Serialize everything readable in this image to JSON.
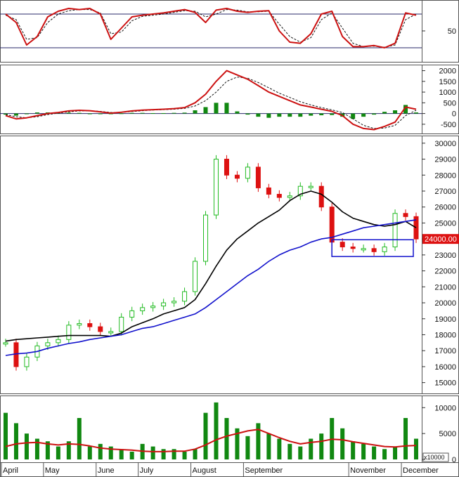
{
  "chart_data": [
    {
      "panel": "stochastic",
      "type": "line",
      "x": [
        "Apr",
        "Apr",
        "Apr",
        "Apr",
        "May",
        "May",
        "May",
        "May",
        "May",
        "Jun",
        "Jun",
        "Jun",
        "Jun",
        "Jul",
        "Jul",
        "Jul",
        "Jul",
        "Jul",
        "Aug",
        "Aug",
        "Aug",
        "Aug",
        "Aug",
        "Sep",
        "Sep",
        "Sep",
        "Sep",
        "Sep",
        "Oct",
        "Oct",
        "Oct",
        "Oct",
        "Oct",
        "Nov",
        "Nov",
        "Nov",
        "Nov",
        "Nov",
        "Dec",
        "Dec"
      ],
      "series": [
        {
          "values": [
            80,
            65,
            25,
            40,
            75,
            85,
            90,
            88,
            90,
            80,
            35,
            55,
            75,
            78,
            80,
            82,
            85,
            88,
            83,
            65,
            87,
            90,
            85,
            83,
            85,
            86,
            50,
            30,
            28,
            45,
            80,
            85,
            40,
            22,
            22,
            24,
            20,
            28,
            82,
            78
          ]
        },
        {
          "values": [
            78,
            70,
            35,
            38,
            65,
            80,
            86,
            88,
            88,
            82,
            45,
            48,
            68,
            76,
            78,
            80,
            83,
            86,
            85,
            75,
            80,
            88,
            87,
            84,
            84,
            85,
            62,
            40,
            30,
            38,
            70,
            82,
            55,
            28,
            22,
            23,
            21,
            25,
            70,
            80
          ]
        }
      ],
      "yticks": [
        50
      ],
      "ylim": [
        0,
        100
      ],
      "hlines": [
        80,
        20
      ]
    },
    {
      "panel": "macd",
      "type": "line",
      "x": [
        "Apr",
        "Apr",
        "Apr",
        "Apr",
        "May",
        "May",
        "May",
        "May",
        "May",
        "Jun",
        "Jun",
        "Jun",
        "Jun",
        "Jul",
        "Jul",
        "Jul",
        "Jul",
        "Jul",
        "Aug",
        "Aug",
        "Aug",
        "Aug",
        "Aug",
        "Sep",
        "Sep",
        "Sep",
        "Sep",
        "Sep",
        "Oct",
        "Oct",
        "Oct",
        "Oct",
        "Oct",
        "Nov",
        "Nov",
        "Nov",
        "Nov",
        "Nov",
        "Dec",
        "Dec"
      ],
      "series": [
        {
          "values": [
            -100,
            -250,
            -200,
            -100,
            0,
            50,
            120,
            150,
            130,
            80,
            20,
            60,
            120,
            160,
            180,
            200,
            230,
            280,
            500,
            900,
            1500,
            2000,
            1800,
            1600,
            1300,
            1000,
            800,
            600,
            400,
            300,
            200,
            100,
            -100,
            -500,
            -700,
            -750,
            -600,
            -400,
            300,
            200
          ]
        },
        {
          "values": [
            -50,
            -150,
            -200,
            -150,
            -50,
            20,
            80,
            120,
            130,
            100,
            50,
            50,
            90,
            130,
            160,
            180,
            200,
            240,
            350,
            600,
            1000,
            1500,
            1700,
            1650,
            1450,
            1200,
            950,
            750,
            550,
            400,
            280,
            170,
            50,
            -250,
            -550,
            -700,
            -680,
            -550,
            -100,
            150
          ]
        },
        {
          "values": [
            -50,
            -100,
            0,
            50,
            50,
            30,
            40,
            30,
            0,
            -20,
            -30,
            10,
            30,
            30,
            20,
            20,
            30,
            40,
            150,
            300,
            500,
            500,
            100,
            -50,
            -150,
            -200,
            -150,
            -150,
            -150,
            -100,
            -80,
            -70,
            -150,
            -250,
            -150,
            -50,
            80,
            150,
            400,
            50
          ]
        }
      ],
      "yticks": [
        2000,
        1500,
        1000,
        500,
        0,
        -500
      ],
      "ylim": [
        -800,
        2150
      ]
    },
    {
      "panel": "price",
      "type": "line",
      "x": [
        "Apr",
        "Apr",
        "Apr",
        "Apr",
        "May",
        "May",
        "May",
        "May",
        "May",
        "Jun",
        "Jun",
        "Jun",
        "Jun",
        "Jul",
        "Jul",
        "Jul",
        "Jul",
        "Jul",
        "Aug",
        "Aug",
        "Aug",
        "Aug",
        "Aug",
        "Sep",
        "Sep",
        "Sep",
        "Sep",
        "Sep",
        "Oct",
        "Oct",
        "Oct",
        "Oct",
        "Oct",
        "Nov",
        "Nov",
        "Nov",
        "Nov",
        "Nov",
        "Dec",
        "Dec"
      ],
      "series": [
        {
          "values": [
            17500,
            16000,
            16600,
            17300,
            17500,
            17700,
            18600,
            18700,
            18500,
            18200,
            18200,
            19100,
            19500,
            19700,
            19800,
            20000,
            20100,
            20700,
            22600,
            25500,
            29000,
            28000,
            27800,
            28500,
            27200,
            26800,
            26600,
            26700,
            27300,
            27300,
            26000,
            23800,
            23500,
            23400,
            23400,
            23200,
            23500,
            25600,
            25400,
            24000
          ]
        },
        {
          "values": [
            17600,
            17700,
            17750,
            17800,
            17850,
            17900,
            17950,
            17950,
            17950,
            17950,
            17900,
            18100,
            18500,
            18750,
            19000,
            19300,
            19500,
            19700,
            20200,
            21200,
            22300,
            23300,
            24000,
            24500,
            25000,
            25400,
            25800,
            26400,
            26800,
            27000,
            26800,
            26300,
            25700,
            25300,
            25100,
            24900,
            24800,
            24900,
            25100,
            24700
          ]
        },
        {
          "values": [
            16700,
            16800,
            16850,
            16950,
            17150,
            17300,
            17450,
            17550,
            17700,
            17800,
            17900,
            18000,
            18200,
            18400,
            18500,
            18700,
            18900,
            19100,
            19300,
            19700,
            20200,
            20700,
            21200,
            21700,
            22100,
            22600,
            23000,
            23300,
            23500,
            23800,
            24000,
            24100,
            24300,
            24500,
            24700,
            24800,
            24900,
            25000,
            25100,
            25200
          ]
        }
      ],
      "yticks": [
        30000,
        29000,
        28000,
        27000,
        26000,
        25000,
        24000,
        23000,
        22000,
        21000,
        20000,
        19000,
        18000,
        17000,
        16000,
        15000
      ],
      "ylim": [
        14500,
        30300
      ],
      "last_price_label": "24000.00",
      "highlight_box": {
        "x_from": "Nov",
        "x_to": "Dec",
        "y_from": 22900,
        "y_to": 23950
      }
    },
    {
      "panel": "volume",
      "type": "bar",
      "x": [
        "Apr",
        "Apr",
        "Apr",
        "Apr",
        "May",
        "May",
        "May",
        "May",
        "May",
        "Jun",
        "Jun",
        "Jun",
        "Jun",
        "Jul",
        "Jul",
        "Jul",
        "Jul",
        "Jul",
        "Aug",
        "Aug",
        "Aug",
        "Aug",
        "Aug",
        "Sep",
        "Sep",
        "Sep",
        "Sep",
        "Sep",
        "Oct",
        "Oct",
        "Oct",
        "Oct",
        "Oct",
        "Nov",
        "Nov",
        "Nov",
        "Nov",
        "Nov",
        "Dec",
        "Dec"
      ],
      "series": [
        {
          "values": [
            9000,
            7000,
            5000,
            4000,
            3500,
            2500,
            3500,
            8000,
            2500,
            3000,
            2500,
            2000,
            1500,
            3000,
            2500,
            2000,
            2000,
            1500,
            2000,
            9000,
            11000,
            8000,
            6000,
            4500,
            7000,
            5000,
            4000,
            3000,
            2500,
            4000,
            5000,
            8000,
            6000,
            3500,
            3000,
            2500,
            2000,
            2500,
            8000,
            4000
          ]
        },
        {
          "values": [
            2500,
            3000,
            3200,
            3300,
            3000,
            2800,
            3000,
            2900,
            2600,
            2200,
            2000,
            1900,
            1800,
            1600,
            1500,
            1500,
            1600,
            1600,
            2000,
            2800,
            3800,
            4500,
            5000,
            5500,
            5800,
            5000,
            4200,
            3500,
            3000,
            3300,
            3500,
            3900,
            3800,
            3400,
            3100,
            2800,
            2500,
            2400,
            2600,
            2700
          ]
        }
      ],
      "yticks": [
        10000,
        5000,
        0
      ],
      "ylim": [
        0,
        11800
      ],
      "unit_label": "x10000"
    }
  ],
  "xaxis": {
    "labels": [
      {
        "text": "April",
        "at": 0
      },
      {
        "text": "May",
        "at": 4
      },
      {
        "text": "June",
        "at": 9
      },
      {
        "text": "July",
        "at": 13
      },
      {
        "text": "August",
        "at": 18
      },
      {
        "text": "September",
        "at": 23
      },
      {
        "text": "November",
        "at": 33
      },
      {
        "text": "December",
        "at": 38
      }
    ]
  },
  "colors": {
    "price_up": "#22bb22",
    "price_down": "#dd1111",
    "ma_short": "#000000",
    "ma_long": "#1111cc",
    "stoch_k": "#cc1111",
    "stoch_d": "#111111",
    "macd": "#cc1111",
    "signal": "#111111",
    "hist": "#118811",
    "volume": "#118811",
    "vol_ma": "#cc1111",
    "last_price_bg": "#dd1111",
    "highlight": "#1111cc"
  }
}
